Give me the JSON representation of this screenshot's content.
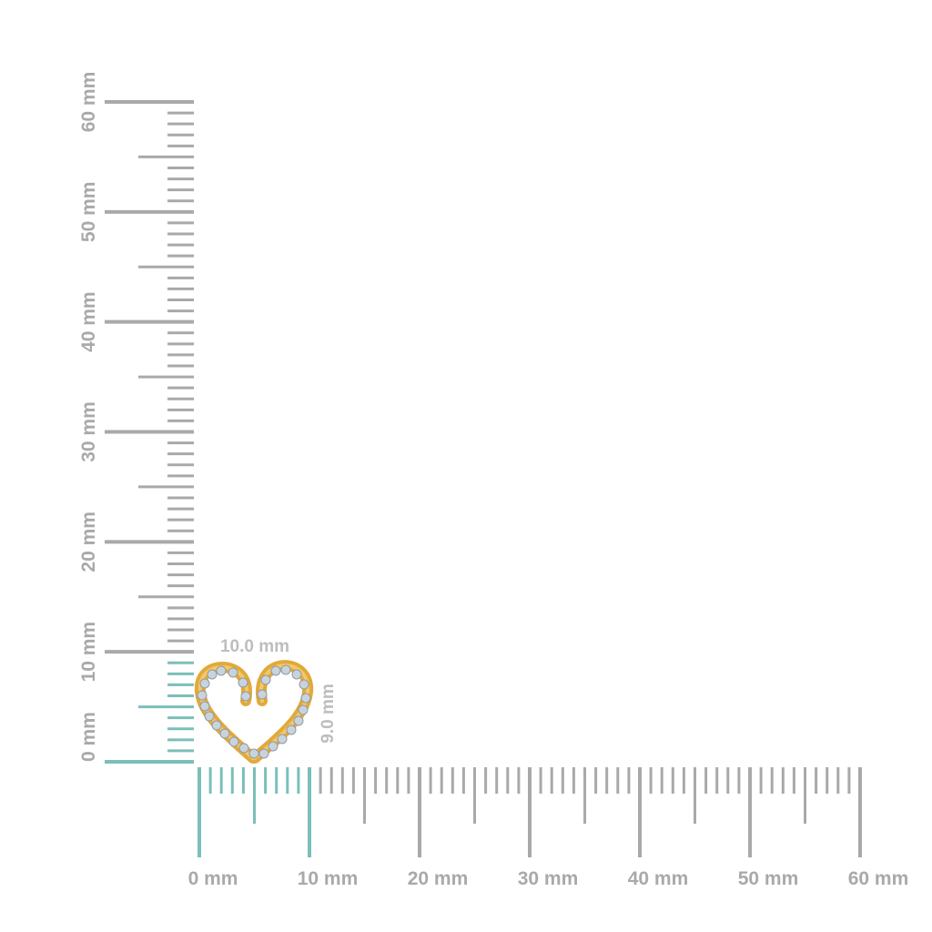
{
  "product": {
    "name_icon": "heart-pendant-image",
    "width_label": "10.0 mm",
    "height_label": "9.0 mm"
  },
  "ruler": {
    "unit": "mm",
    "max": 60,
    "highlight_extent_mm": 10,
    "vertical_labels": [
      "0 mm",
      "10 mm",
      "20 mm",
      "30 mm",
      "40 mm",
      "50 mm",
      "60 mm"
    ],
    "horizontal_labels": [
      "0 mm",
      "10 mm",
      "20 mm",
      "30 mm",
      "40 mm",
      "50 mm",
      "60 mm"
    ]
  },
  "colors": {
    "tick": "#a9a9a9",
    "highlight": "#7bbfb8",
    "gold": "#e2a93a",
    "diamond": "#c9d3dc"
  }
}
